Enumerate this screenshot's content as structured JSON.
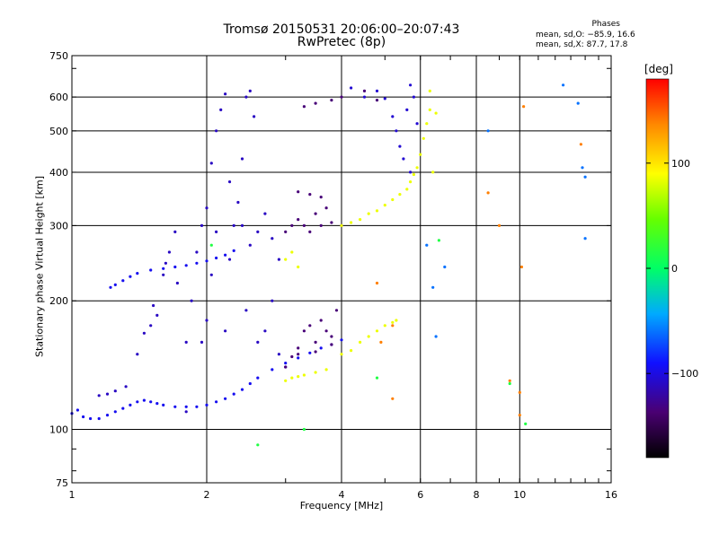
{
  "figure": {
    "title": "Tromsø 20150531 20:06:00–20:07:43",
    "subtitle": "RwPretec (8p)",
    "stats": {
      "heading": "Phases",
      "o_mode": "mean, sd,O: −85.9, 16.6",
      "x_mode": "mean, sd,X:  87.7, 17.8"
    },
    "colorbar": {
      "unit": "[deg]",
      "ticks": [
        "100",
        "0",
        "−100"
      ],
      "tick_values": [
        100,
        0,
        -100
      ],
      "range": [
        -180,
        180
      ]
    }
  },
  "chart_data": {
    "type": "scatter",
    "xlabel": "Frequency [MHz]",
    "ylabel": "Stationary phase Virtual Height [km]",
    "x_scale": "log",
    "y_scale": "log",
    "xlim": [
      1,
      16
    ],
    "ylim": [
      75,
      750
    ],
    "x_ticks": [
      1,
      2,
      4,
      6,
      8,
      10,
      16
    ],
    "x_tick_labels": [
      "1",
      "2",
      "4",
      "6",
      "8",
      "10",
      "16"
    ],
    "y_ticks": [
      75,
      100,
      200,
      300,
      400,
      500,
      600,
      750
    ],
    "y_tick_labels": [
      "75",
      "100",
      "200",
      "300",
      "400",
      "500",
      "600",
      "750"
    ],
    "grid": true,
    "series": [
      {
        "color_deg": -95,
        "points": [
          [
            1.0,
            109
          ],
          [
            1.03,
            111
          ],
          [
            1.06,
            107
          ],
          [
            1.1,
            106
          ],
          [
            1.15,
            106
          ],
          [
            1.2,
            108
          ],
          [
            1.25,
            110
          ],
          [
            1.3,
            112
          ],
          [
            1.35,
            114
          ],
          [
            1.4,
            116
          ],
          [
            1.45,
            117
          ],
          [
            1.5,
            116
          ],
          [
            1.55,
            115
          ],
          [
            1.6,
            114
          ],
          [
            1.7,
            113
          ],
          [
            1.8,
            113
          ],
          [
            1.9,
            113
          ],
          [
            2.0,
            114
          ],
          [
            2.1,
            116
          ],
          [
            2.2,
            118
          ],
          [
            2.3,
            121
          ],
          [
            2.4,
            124
          ],
          [
            2.5,
            128
          ],
          [
            2.6,
            132
          ],
          [
            2.8,
            138
          ],
          [
            3.0,
            143
          ],
          [
            3.2,
            147
          ],
          [
            3.4,
            151
          ],
          [
            3.6,
            155
          ],
          [
            3.8,
            158
          ],
          [
            4.0,
            162
          ],
          [
            1.22,
            215
          ],
          [
            1.25,
            218
          ],
          [
            1.3,
            223
          ],
          [
            1.35,
            228
          ],
          [
            1.4,
            232
          ],
          [
            1.5,
            236
          ],
          [
            1.6,
            238
          ],
          [
            1.7,
            240
          ],
          [
            1.8,
            242
          ],
          [
            1.9,
            245
          ],
          [
            2.0,
            248
          ],
          [
            2.1,
            252
          ],
          [
            2.2,
            256
          ],
          [
            2.3,
            262
          ]
        ]
      },
      {
        "color_deg": -110,
        "points": [
          [
            1.15,
            120
          ],
          [
            1.2,
            121
          ],
          [
            1.25,
            123
          ],
          [
            1.32,
            126
          ],
          [
            1.4,
            150
          ],
          [
            1.45,
            168
          ],
          [
            1.5,
            175
          ],
          [
            1.52,
            195
          ],
          [
            1.55,
            185
          ],
          [
            1.6,
            230
          ],
          [
            1.62,
            245
          ],
          [
            1.65,
            260
          ],
          [
            1.7,
            290
          ],
          [
            1.72,
            220
          ],
          [
            1.8,
            160
          ],
          [
            1.85,
            200
          ],
          [
            1.9,
            260
          ],
          [
            1.95,
            300
          ],
          [
            1.95,
            160
          ],
          [
            2.0,
            180
          ],
          [
            2.0,
            330
          ],
          [
            2.05,
            420
          ],
          [
            2.05,
            230
          ],
          [
            2.1,
            500
          ],
          [
            2.1,
            290
          ],
          [
            2.15,
            560
          ],
          [
            2.2,
            610
          ],
          [
            2.2,
            170
          ],
          [
            2.25,
            380
          ],
          [
            2.25,
            250
          ],
          [
            2.3,
            300
          ],
          [
            2.35,
            340
          ],
          [
            2.4,
            430
          ],
          [
            2.45,
            600
          ],
          [
            2.5,
            620
          ],
          [
            2.55,
            540
          ],
          [
            2.4,
            300
          ],
          [
            2.5,
            270
          ],
          [
            2.6,
            290
          ],
          [
            2.7,
            320
          ],
          [
            2.8,
            280
          ],
          [
            2.9,
            250
          ],
          [
            2.45,
            190
          ],
          [
            2.6,
            160
          ],
          [
            2.7,
            170
          ],
          [
            2.8,
            200
          ],
          [
            2.9,
            150
          ],
          [
            3.0,
            140
          ],
          [
            1.8,
            110
          ]
        ]
      },
      {
        "color_deg": -135,
        "points": [
          [
            3.0,
            290
          ],
          [
            3.1,
            300
          ],
          [
            3.2,
            310
          ],
          [
            3.3,
            300
          ],
          [
            3.4,
            290
          ],
          [
            3.5,
            320
          ],
          [
            3.6,
            300
          ],
          [
            3.7,
            330
          ],
          [
            3.8,
            305
          ],
          [
            4.0,
            300
          ],
          [
            3.2,
            360
          ],
          [
            3.4,
            355
          ],
          [
            3.6,
            350
          ],
          [
            3.3,
            170
          ],
          [
            3.4,
            175
          ],
          [
            3.5,
            160
          ],
          [
            3.6,
            180
          ],
          [
            3.7,
            170
          ],
          [
            3.8,
            165
          ],
          [
            3.2,
            155
          ],
          [
            3.1,
            148
          ],
          [
            3.9,
            190
          ],
          [
            3.3,
            570
          ],
          [
            3.5,
            580
          ],
          [
            3.8,
            590
          ],
          [
            4.0,
            600
          ],
          [
            4.5,
            620
          ],
          [
            4.8,
            590
          ],
          [
            3.0,
            140
          ],
          [
            3.2,
            150
          ],
          [
            3.5,
            152
          ],
          [
            3.8,
            158
          ]
        ]
      },
      {
        "color_deg": -105,
        "points": [
          [
            4.2,
            630
          ],
          [
            4.5,
            600
          ],
          [
            4.8,
            620
          ],
          [
            5.0,
            595
          ],
          [
            5.2,
            540
          ],
          [
            5.3,
            500
          ],
          [
            5.4,
            460
          ],
          [
            5.5,
            430
          ],
          [
            5.6,
            560
          ],
          [
            5.7,
            640
          ],
          [
            5.8,
            600
          ],
          [
            5.9,
            520
          ],
          [
            5.7,
            400
          ]
        ]
      },
      {
        "color_deg": 85,
        "points": [
          [
            3.0,
            130
          ],
          [
            3.1,
            132
          ],
          [
            3.2,
            133
          ],
          [
            3.3,
            134
          ],
          [
            3.5,
            136
          ],
          [
            3.7,
            138
          ],
          [
            4.0,
            150
          ],
          [
            4.2,
            153
          ],
          [
            4.4,
            160
          ],
          [
            4.6,
            165
          ],
          [
            4.8,
            170
          ],
          [
            5.0,
            175
          ],
          [
            5.2,
            178
          ],
          [
            5.3,
            180
          ],
          [
            4.0,
            300
          ],
          [
            4.2,
            305
          ],
          [
            4.4,
            310
          ],
          [
            4.6,
            320
          ],
          [
            4.8,
            325
          ],
          [
            5.0,
            335
          ],
          [
            5.2,
            345
          ],
          [
            5.4,
            355
          ],
          [
            5.6,
            365
          ],
          [
            5.7,
            380
          ],
          [
            5.8,
            395
          ],
          [
            5.9,
            410
          ],
          [
            6.0,
            440
          ],
          [
            6.1,
            480
          ],
          [
            6.2,
            520
          ],
          [
            6.3,
            560
          ],
          [
            6.3,
            620
          ],
          [
            6.4,
            400
          ],
          [
            6.5,
            550
          ],
          [
            3.0,
            250
          ],
          [
            3.1,
            260
          ],
          [
            3.2,
            240
          ]
        ]
      },
      {
        "color_deg": 140,
        "points": [
          [
            10.2,
            570
          ],
          [
            13.7,
            465
          ],
          [
            8.5,
            358
          ],
          [
            9.0,
            300
          ],
          [
            4.8,
            220
          ],
          [
            5.2,
            175
          ],
          [
            5.2,
            118
          ],
          [
            4.9,
            160
          ],
          [
            10.0,
            108
          ],
          [
            10.1,
            240
          ],
          [
            9.5,
            130
          ],
          [
            10.0,
            122
          ]
        ]
      },
      {
        "color_deg": 15,
        "points": [
          [
            2.05,
            270
          ],
          [
            2.6,
            92
          ],
          [
            3.3,
            100
          ],
          [
            4.8,
            132
          ],
          [
            6.6,
            277
          ],
          [
            9.5,
            128
          ],
          [
            10.3,
            103
          ]
        ]
      },
      {
        "color_deg": -60,
        "points": [
          [
            6.5,
            165
          ],
          [
            6.8,
            240
          ],
          [
            13.5,
            580
          ],
          [
            13.8,
            410
          ],
          [
            14.0,
            390
          ],
          [
            8.5,
            500
          ],
          [
            6.4,
            215
          ],
          [
            12.5,
            640
          ],
          [
            14.0,
            280
          ],
          [
            6.2,
            270
          ]
        ]
      }
    ]
  }
}
